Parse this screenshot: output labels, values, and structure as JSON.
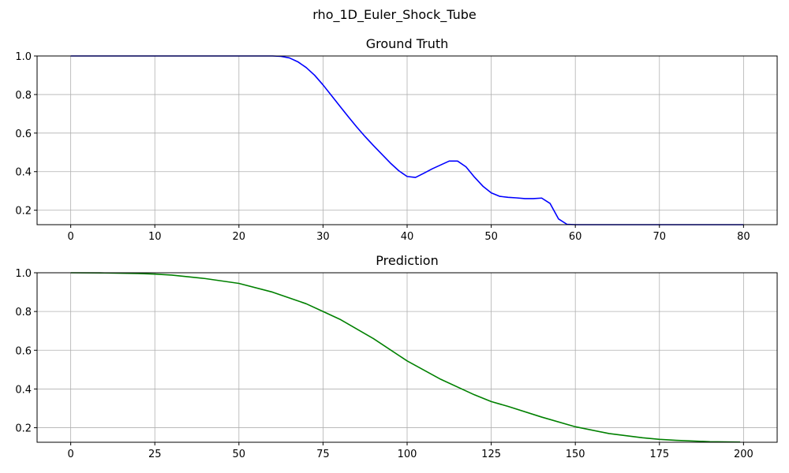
{
  "figure": {
    "suptitle": "rho_1D_Euler_Shock_Tube"
  },
  "chart_data": [
    {
      "type": "line",
      "title": "Ground Truth",
      "xlabel": "",
      "ylabel": "",
      "xlim": [
        -4,
        84
      ],
      "ylim": [
        0.125,
        1.0
      ],
      "xticks": [
        0,
        10,
        20,
        30,
        40,
        50,
        60,
        70,
        80
      ],
      "yticks": [
        0.2,
        0.4,
        0.6,
        0.8,
        1.0
      ],
      "ytick_labels": [
        "0.2",
        "0.4",
        "0.6",
        "0.8",
        "1.0"
      ],
      "grid": true,
      "series": [
        {
          "color": "#0000ff",
          "x": [
            0,
            5,
            10,
            15,
            20,
            22,
            24,
            25,
            26,
            27,
            28,
            29,
            30,
            31,
            32,
            33,
            34,
            35,
            36,
            37,
            38,
            39,
            40,
            41,
            42,
            43,
            44,
            45,
            46,
            47,
            48,
            49,
            50,
            51,
            52,
            53,
            54,
            55,
            56,
            57,
            58,
            59,
            60,
            65,
            70,
            75,
            80
          ],
          "y": [
            1.0,
            1.0,
            1.0,
            1.0,
            1.0,
            1.0,
            1.0,
            0.998,
            0.99,
            0.97,
            0.94,
            0.9,
            0.85,
            0.795,
            0.74,
            0.685,
            0.632,
            0.582,
            0.535,
            0.49,
            0.445,
            0.405,
            0.375,
            0.37,
            0.392,
            0.415,
            0.435,
            0.455,
            0.455,
            0.425,
            0.372,
            0.325,
            0.29,
            0.272,
            0.267,
            0.264,
            0.26,
            0.26,
            0.263,
            0.235,
            0.155,
            0.127,
            0.125,
            0.125,
            0.125,
            0.125,
            0.125
          ]
        }
      ]
    },
    {
      "type": "line",
      "title": "Prediction",
      "xlabel": "",
      "ylabel": "",
      "xlim": [
        -10,
        210
      ],
      "ylim": [
        0.125,
        1.0
      ],
      "xticks": [
        0,
        25,
        50,
        75,
        100,
        125,
        150,
        175,
        200
      ],
      "yticks": [
        0.2,
        0.4,
        0.6,
        0.8,
        1.0
      ],
      "ytick_labels": [
        "0.2",
        "0.4",
        "0.6",
        "0.8",
        "1.0"
      ],
      "grid": true,
      "series": [
        {
          "color": "#008000",
          "x": [
            0,
            10,
            20,
            25,
            30,
            40,
            50,
            60,
            70,
            75,
            80,
            90,
            100,
            110,
            120,
            125,
            130,
            140,
            150,
            160,
            170,
            175,
            180,
            190,
            199
          ],
          "y": [
            1.0,
            0.999,
            0.996,
            0.993,
            0.988,
            0.97,
            0.945,
            0.9,
            0.84,
            0.8,
            0.76,
            0.66,
            0.545,
            0.45,
            0.37,
            0.335,
            0.31,
            0.255,
            0.205,
            0.17,
            0.148,
            0.14,
            0.135,
            0.128,
            0.126
          ]
        }
      ]
    }
  ]
}
